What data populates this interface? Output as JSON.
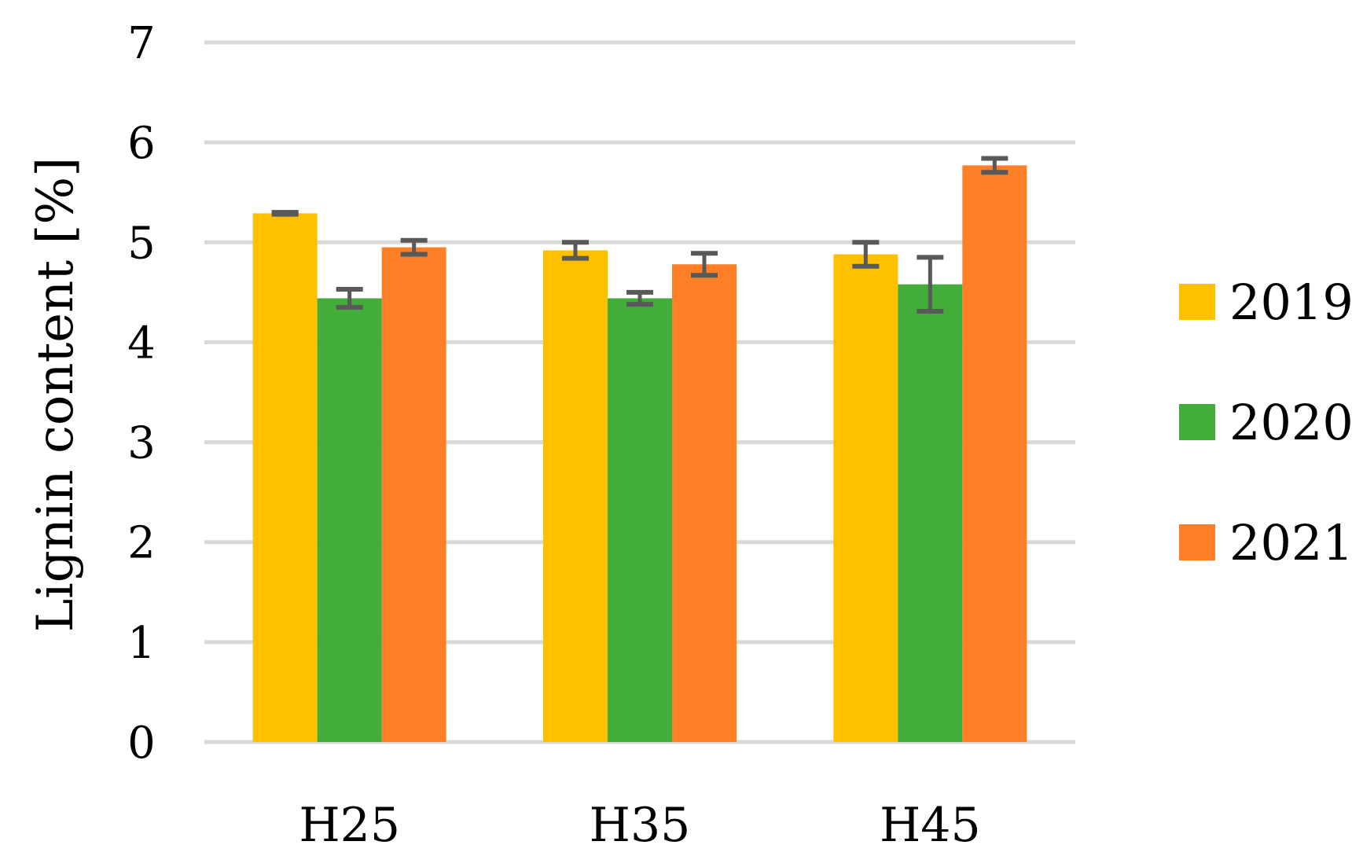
{
  "chart_data": {
    "type": "bar",
    "title": "",
    "xlabel": "",
    "ylabel": "Lignin content [%]",
    "ylim": [
      0,
      7
    ],
    "yticks": [
      0,
      1,
      2,
      3,
      4,
      5,
      6,
      7
    ],
    "grid": true,
    "legend_position": "right",
    "categories": [
      "H25",
      "H35",
      "H45"
    ],
    "series": [
      {
        "name": "2019",
        "color": "#FFC000",
        "values": [
          5.29,
          4.92,
          4.88
        ],
        "errors": [
          0.01,
          0.08,
          0.12
        ]
      },
      {
        "name": "2020",
        "color": "#43AD3A",
        "values": [
          4.44,
          4.44,
          4.58
        ],
        "errors": [
          0.09,
          0.06,
          0.27
        ]
      },
      {
        "name": "2021",
        "color": "#FF7F27",
        "values": [
          4.95,
          4.78,
          5.77
        ],
        "errors": [
          0.07,
          0.11,
          0.07
        ]
      }
    ],
    "error_bar_color": "#595959",
    "grid_color": "#D9D9D9"
  }
}
